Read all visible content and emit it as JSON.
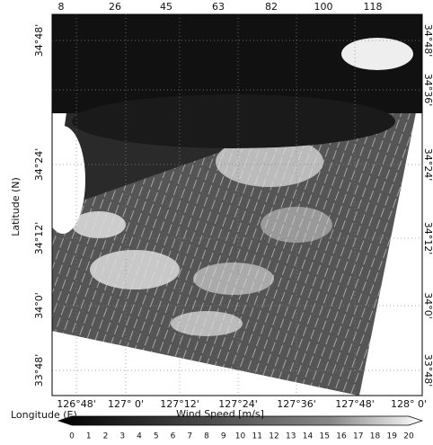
{
  "map": {
    "top_labels": [
      8,
      26,
      45,
      63,
      82,
      100,
      118
    ],
    "left_labels": [
      "34°48'",
      "34°24'",
      "34°12'",
      "34°0'",
      "33°48'"
    ],
    "right_labels": [
      "34°48'",
      "34°36'",
      "34°24'",
      "34°12'",
      "34°0'",
      "33°48'"
    ],
    "bottom_labels": [
      "126°48'",
      "127° 0'",
      "127°12'",
      "127°24'",
      "127°36'",
      "127°48'",
      "128° 0'"
    ],
    "y_axis_title": "Latitude (N)",
    "x_axis_title": "Longitude (E)",
    "colorbar_title": "Wind Speed [m/s]",
    "colorbar_labels": [
      0,
      1,
      2,
      3,
      4,
      5,
      6,
      7,
      8,
      9,
      10,
      11,
      12,
      13,
      14,
      15,
      16,
      17,
      18,
      19,
      20
    ]
  }
}
